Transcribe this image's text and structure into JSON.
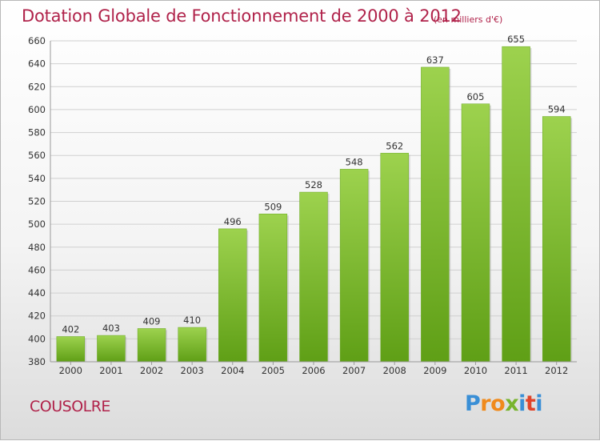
{
  "title": "Dotation Globale de Fonctionnement de 2000 à 2012",
  "subtitle": "(en milliers d'€)",
  "commune": "COUSOLRE",
  "brand": {
    "letters": [
      "P",
      "r",
      "o",
      "x",
      "i",
      "t",
      "i"
    ],
    "colors": [
      "#3a8fd6",
      "#f08a1c",
      "#f08a1c",
      "#78b42d",
      "#3a8fd6",
      "#e0442a",
      "#3a8fd6"
    ]
  },
  "chart_data": {
    "type": "bar",
    "categories": [
      "2000",
      "2001",
      "2002",
      "2003",
      "2004",
      "2005",
      "2006",
      "2007",
      "2008",
      "2009",
      "2010",
      "2011",
      "2012"
    ],
    "values": [
      402,
      403,
      409,
      410,
      496,
      509,
      528,
      548,
      562,
      637,
      605,
      655,
      594
    ],
    "title": "Dotation Globale de Fonctionnement de 2000 à 2012",
    "subtitle": "(en milliers d'€)",
    "xlabel": "",
    "ylabel": "",
    "ylim": [
      380,
      660
    ],
    "yticks": [
      380,
      400,
      420,
      440,
      460,
      480,
      500,
      520,
      540,
      560,
      580,
      600,
      620,
      640,
      660
    ],
    "grid": true,
    "bar_color": "#7dbe32",
    "data_labels": true
  }
}
